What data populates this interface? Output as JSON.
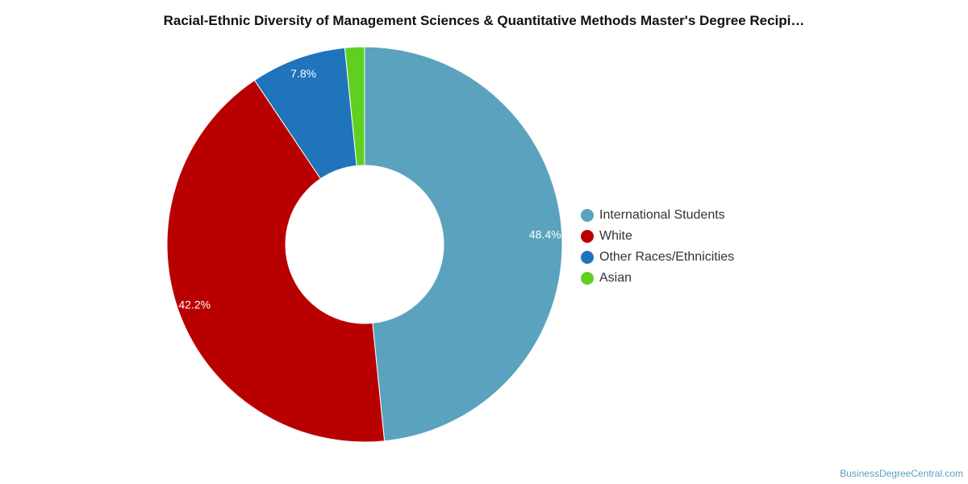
{
  "chart_data": {
    "type": "pie",
    "title": "Racial-Ethnic Diversity of Management Sciences & Quantitative Methods Master's Degree Recipi…",
    "categories": [
      "International Students",
      "White",
      "Other Races/Ethnicities",
      "Asian"
    ],
    "values": [
      48.4,
      42.2,
      7.8,
      1.6
    ],
    "labels": [
      "48.4%",
      "42.2%",
      "7.8%",
      ""
    ],
    "colors": [
      "#5ba2be",
      "#b90000",
      "#1f74bb",
      "#5fd022"
    ],
    "donut": true,
    "legend_position": "right"
  },
  "footer": {
    "source": "BusinessDegreeCentral.com"
  }
}
